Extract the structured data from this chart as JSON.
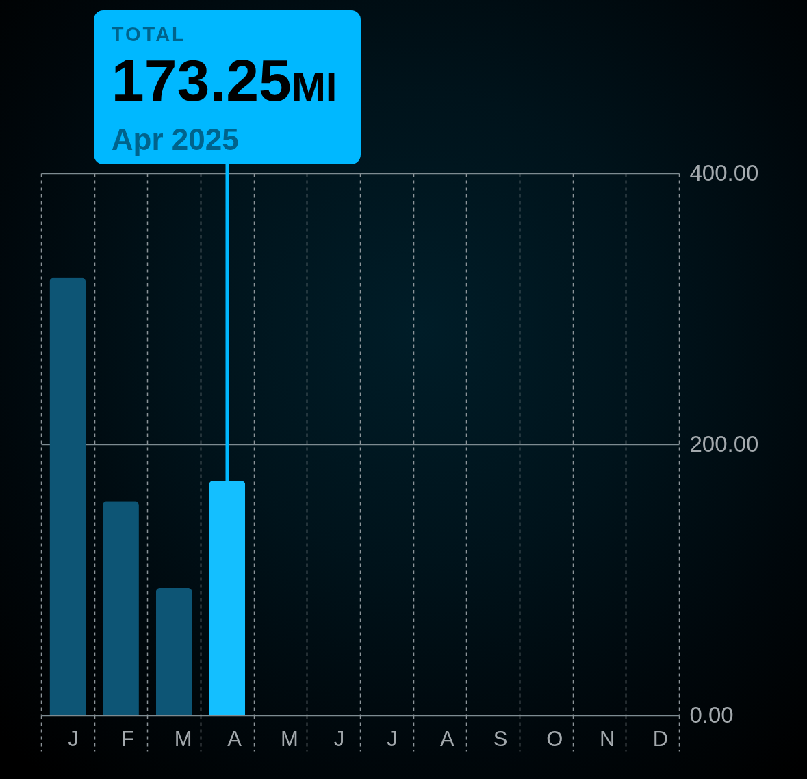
{
  "chart_data": {
    "type": "bar",
    "categories": [
      "J",
      "F",
      "M",
      "A",
      "M",
      "J",
      "J",
      "A",
      "S",
      "O",
      "N",
      "D"
    ],
    "values": [
      323,
      158,
      94,
      173.25,
      null,
      null,
      null,
      null,
      null,
      null,
      null,
      null
    ],
    "colors": [
      "#0d5575",
      "#0d5575",
      "#0d5575",
      "#14bfff",
      "#0d5575",
      "#0d5575",
      "#0d5575",
      "#0d5575",
      "#0d5575",
      "#0d5575",
      "#0d5575",
      "#0d5575"
    ],
    "ylim": [
      0,
      400
    ],
    "yticks": [
      {
        "value": 0,
        "label": "0.00"
      },
      {
        "value": 200,
        "label": "200.00"
      },
      {
        "value": 400,
        "label": "400.00"
      }
    ],
    "grid": true,
    "annotations": [
      "TOTAL",
      {
        "text": "173.25MI",
        "y": 173.25
      },
      "Apr 2025"
    ]
  }
}
